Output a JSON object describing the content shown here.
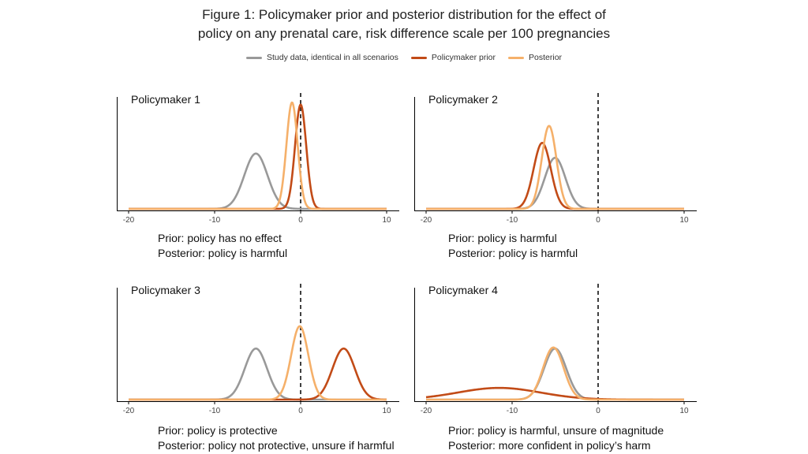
{
  "title_line1": "Figure 1: Policymaker prior and posterior distribution for the effect of",
  "title_line2": "policy on any prenatal care, risk difference scale per 100 pregnancies",
  "legend": [
    {
      "label": "Study data, identical in all scenarios",
      "color": "#999999"
    },
    {
      "label": "Policymaker prior",
      "color": "#c24b17"
    },
    {
      "label": "Posterior",
      "color": "#f5b06a"
    }
  ],
  "chart_data": [
    {
      "type": "line",
      "title": "Policymaker 1",
      "caption": [
        "Prior: policy has no effect",
        "Posterior: policy is harmful"
      ],
      "xlim": [
        -20,
        10
      ],
      "xticks": [
        -20,
        -10,
        0,
        10
      ],
      "reference_line_x": 0,
      "series": [
        {
          "name": "Study data, identical in all scenarios",
          "color": "#999999",
          "distribution": "normal",
          "mean": -5.2,
          "sd": 1.35,
          "peak": 0.52
        },
        {
          "name": "Policymaker prior",
          "color": "#c24b17",
          "distribution": "normal",
          "mean": 0.0,
          "sd": 0.65,
          "peak": 0.98
        },
        {
          "name": "Posterior",
          "color": "#f5b06a",
          "distribution": "normal",
          "mean": -1.0,
          "sd": 0.65,
          "peak": 1.0
        }
      ]
    },
    {
      "type": "line",
      "title": "Policymaker 2",
      "caption": [
        "Prior: policy is harmful",
        "Posterior: policy is harmful"
      ],
      "xlim": [
        -20,
        10
      ],
      "xticks": [
        -20,
        -10,
        0,
        10
      ],
      "reference_line_x": 0,
      "series": [
        {
          "name": "Study data, identical in all scenarios",
          "color": "#999999",
          "distribution": "normal",
          "mean": -5.0,
          "sd": 1.2,
          "peak": 0.48
        },
        {
          "name": "Policymaker prior",
          "color": "#c24b17",
          "distribution": "normal",
          "mean": -6.5,
          "sd": 1.0,
          "peak": 0.62
        },
        {
          "name": "Posterior",
          "color": "#f5b06a",
          "distribution": "normal",
          "mean": -5.7,
          "sd": 0.85,
          "peak": 0.78
        }
      ]
    },
    {
      "type": "line",
      "title": "Policymaker 3",
      "caption": [
        "Prior: policy is protective",
        "Posterior: policy not protective, unsure if harmful"
      ],
      "xlim": [
        -20,
        10
      ],
      "xticks": [
        -20,
        -10,
        0,
        10
      ],
      "reference_line_x": 0,
      "series": [
        {
          "name": "Study data, identical in all scenarios",
          "color": "#999999",
          "distribution": "normal",
          "mean": -5.2,
          "sd": 1.3,
          "peak": 0.48
        },
        {
          "name": "Policymaker prior",
          "color": "#c24b17",
          "distribution": "normal",
          "mean": 5.0,
          "sd": 1.3,
          "peak": 0.48
        },
        {
          "name": "Posterior",
          "color": "#f5b06a",
          "distribution": "normal",
          "mean": -0.1,
          "sd": 1.0,
          "peak": 0.69
        }
      ]
    },
    {
      "type": "line",
      "title": "Policymaker 4",
      "caption": [
        "Prior: policy is harmful, unsure of magnitude",
        "Posterior: more confident in policy’s harm"
      ],
      "xlim": [
        -20,
        10
      ],
      "xticks": [
        -20,
        -10,
        0,
        10
      ],
      "reference_line_x": 0,
      "series": [
        {
          "name": "Study data, identical in all scenarios",
          "color": "#999999",
          "distribution": "normal",
          "mean": -5.0,
          "sd": 1.3,
          "peak": 0.48
        },
        {
          "name": "Policymaker prior",
          "color": "#c24b17",
          "distribution": "normal",
          "mean": -11.5,
          "sd": 4.8,
          "peak": 0.11
        },
        {
          "name": "Posterior",
          "color": "#f5b06a",
          "distribution": "normal",
          "mean": -5.2,
          "sd": 1.2,
          "peak": 0.49
        }
      ]
    }
  ]
}
